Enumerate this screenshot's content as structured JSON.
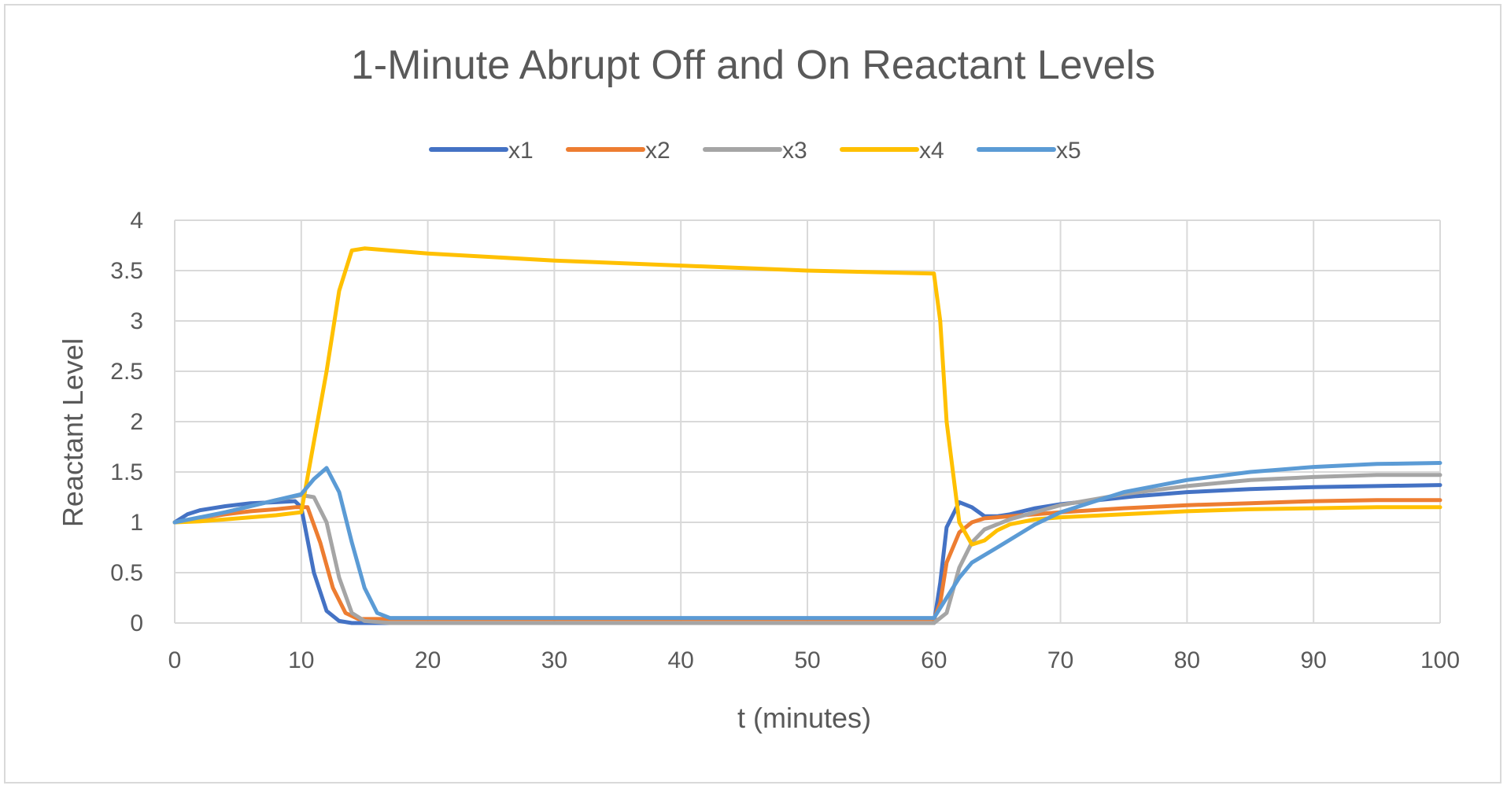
{
  "chart_data": {
    "type": "line",
    "title": "1-Minute Abrupt Off and On Reactant Levels",
    "xlabel": "t (minutes)",
    "ylabel": "Reactant Level",
    "xlim": [
      0,
      100
    ],
    "ylim": [
      0,
      4
    ],
    "x_ticks": [
      "0",
      "10",
      "20",
      "30",
      "40",
      "50",
      "60",
      "70",
      "80",
      "90",
      "100"
    ],
    "y_ticks": [
      "0",
      "0.5",
      "1",
      "1.5",
      "2",
      "2.5",
      "3",
      "3.5",
      "4"
    ],
    "grid": true,
    "legend_position": "top",
    "series": [
      {
        "name": "x1",
        "color": "#4472c4",
        "points": [
          [
            0,
            1.0
          ],
          [
            1,
            1.08
          ],
          [
            2,
            1.12
          ],
          [
            4,
            1.16
          ],
          [
            6,
            1.19
          ],
          [
            8,
            1.2
          ],
          [
            9.5,
            1.21
          ],
          [
            10,
            1.15
          ],
          [
            11,
            0.5
          ],
          [
            12,
            0.12
          ],
          [
            13,
            0.02
          ],
          [
            14,
            0.0
          ],
          [
            20,
            0.0
          ],
          [
            30,
            0.0
          ],
          [
            40,
            0.0
          ],
          [
            50,
            0.0
          ],
          [
            59.5,
            0.0
          ],
          [
            60,
            0.0
          ],
          [
            60.5,
            0.4
          ],
          [
            61,
            0.95
          ],
          [
            62,
            1.2
          ],
          [
            63,
            1.15
          ],
          [
            64,
            1.06
          ],
          [
            65,
            1.06
          ],
          [
            66,
            1.08
          ],
          [
            68,
            1.14
          ],
          [
            70,
            1.18
          ],
          [
            73,
            1.22
          ],
          [
            76,
            1.26
          ],
          [
            80,
            1.3
          ],
          [
            85,
            1.33
          ],
          [
            90,
            1.35
          ],
          [
            95,
            1.36
          ],
          [
            100,
            1.37
          ]
        ]
      },
      {
        "name": "x2",
        "color": "#ed7d31",
        "points": [
          [
            0,
            1.0
          ],
          [
            2,
            1.04
          ],
          [
            4,
            1.08
          ],
          [
            6,
            1.11
          ],
          [
            8,
            1.13
          ],
          [
            9.5,
            1.15
          ],
          [
            10.5,
            1.15
          ],
          [
            11.5,
            0.8
          ],
          [
            12.5,
            0.35
          ],
          [
            13.5,
            0.1
          ],
          [
            14.5,
            0.04
          ],
          [
            15,
            0.04
          ],
          [
            20,
            0.04
          ],
          [
            30,
            0.04
          ],
          [
            40,
            0.04
          ],
          [
            50,
            0.04
          ],
          [
            60,
            0.04
          ],
          [
            60.5,
            0.2
          ],
          [
            61,
            0.6
          ],
          [
            62,
            0.9
          ],
          [
            63,
            1.0
          ],
          [
            64,
            1.04
          ],
          [
            65,
            1.05
          ],
          [
            68,
            1.08
          ],
          [
            70,
            1.1
          ],
          [
            75,
            1.14
          ],
          [
            80,
            1.17
          ],
          [
            85,
            1.19
          ],
          [
            90,
            1.21
          ],
          [
            95,
            1.22
          ],
          [
            100,
            1.22
          ]
        ]
      },
      {
        "name": "x3",
        "color": "#a5a5a5",
        "points": [
          [
            0,
            1.0
          ],
          [
            2,
            1.04
          ],
          [
            4,
            1.1
          ],
          [
            6,
            1.16
          ],
          [
            8,
            1.22
          ],
          [
            10,
            1.27
          ],
          [
            11,
            1.25
          ],
          [
            12,
            1.0
          ],
          [
            13,
            0.45
          ],
          [
            14,
            0.1
          ],
          [
            15,
            0.02
          ],
          [
            17,
            0.0
          ],
          [
            20,
            0.0
          ],
          [
            30,
            0.0
          ],
          [
            40,
            0.0
          ],
          [
            50,
            0.0
          ],
          [
            60,
            0.0
          ],
          [
            61,
            0.1
          ],
          [
            62,
            0.55
          ],
          [
            63,
            0.8
          ],
          [
            64,
            0.93
          ],
          [
            66,
            1.03
          ],
          [
            68,
            1.1
          ],
          [
            70,
            1.17
          ],
          [
            75,
            1.28
          ],
          [
            80,
            1.36
          ],
          [
            85,
            1.42
          ],
          [
            90,
            1.45
          ],
          [
            95,
            1.47
          ],
          [
            100,
            1.47
          ]
        ]
      },
      {
        "name": "x4",
        "color": "#ffc000",
        "points": [
          [
            0,
            1.0
          ],
          [
            2,
            1.01
          ],
          [
            4,
            1.03
          ],
          [
            6,
            1.05
          ],
          [
            8,
            1.07
          ],
          [
            10,
            1.1
          ],
          [
            11,
            1.8
          ],
          [
            12,
            2.5
          ],
          [
            13,
            3.3
          ],
          [
            14,
            3.7
          ],
          [
            15,
            3.72
          ],
          [
            20,
            3.67
          ],
          [
            30,
            3.6
          ],
          [
            40,
            3.55
          ],
          [
            50,
            3.5
          ],
          [
            60,
            3.47
          ],
          [
            60.5,
            3.0
          ],
          [
            61,
            2.0
          ],
          [
            62,
            1.0
          ],
          [
            63,
            0.78
          ],
          [
            64,
            0.82
          ],
          [
            65,
            0.92
          ],
          [
            66,
            0.98
          ],
          [
            68,
            1.03
          ],
          [
            70,
            1.05
          ],
          [
            75,
            1.08
          ],
          [
            80,
            1.11
          ],
          [
            85,
            1.13
          ],
          [
            90,
            1.14
          ],
          [
            95,
            1.15
          ],
          [
            100,
            1.15
          ]
        ]
      },
      {
        "name": "x5",
        "color": "#5b9bd5",
        "points": [
          [
            0,
            1.0
          ],
          [
            2,
            1.05
          ],
          [
            4,
            1.1
          ],
          [
            6,
            1.16
          ],
          [
            8,
            1.22
          ],
          [
            10,
            1.28
          ],
          [
            11,
            1.43
          ],
          [
            12,
            1.54
          ],
          [
            13,
            1.3
          ],
          [
            14,
            0.8
          ],
          [
            15,
            0.35
          ],
          [
            16,
            0.1
          ],
          [
            17,
            0.05
          ],
          [
            18,
            0.05
          ],
          [
            20,
            0.05
          ],
          [
            30,
            0.05
          ],
          [
            40,
            0.05
          ],
          [
            50,
            0.05
          ],
          [
            60,
            0.05
          ],
          [
            61,
            0.25
          ],
          [
            62,
            0.45
          ],
          [
            63,
            0.6
          ],
          [
            65,
            0.75
          ],
          [
            68,
            0.98
          ],
          [
            70,
            1.1
          ],
          [
            75,
            1.3
          ],
          [
            80,
            1.42
          ],
          [
            85,
            1.5
          ],
          [
            90,
            1.55
          ],
          [
            95,
            1.58
          ],
          [
            100,
            1.59
          ]
        ]
      }
    ]
  }
}
